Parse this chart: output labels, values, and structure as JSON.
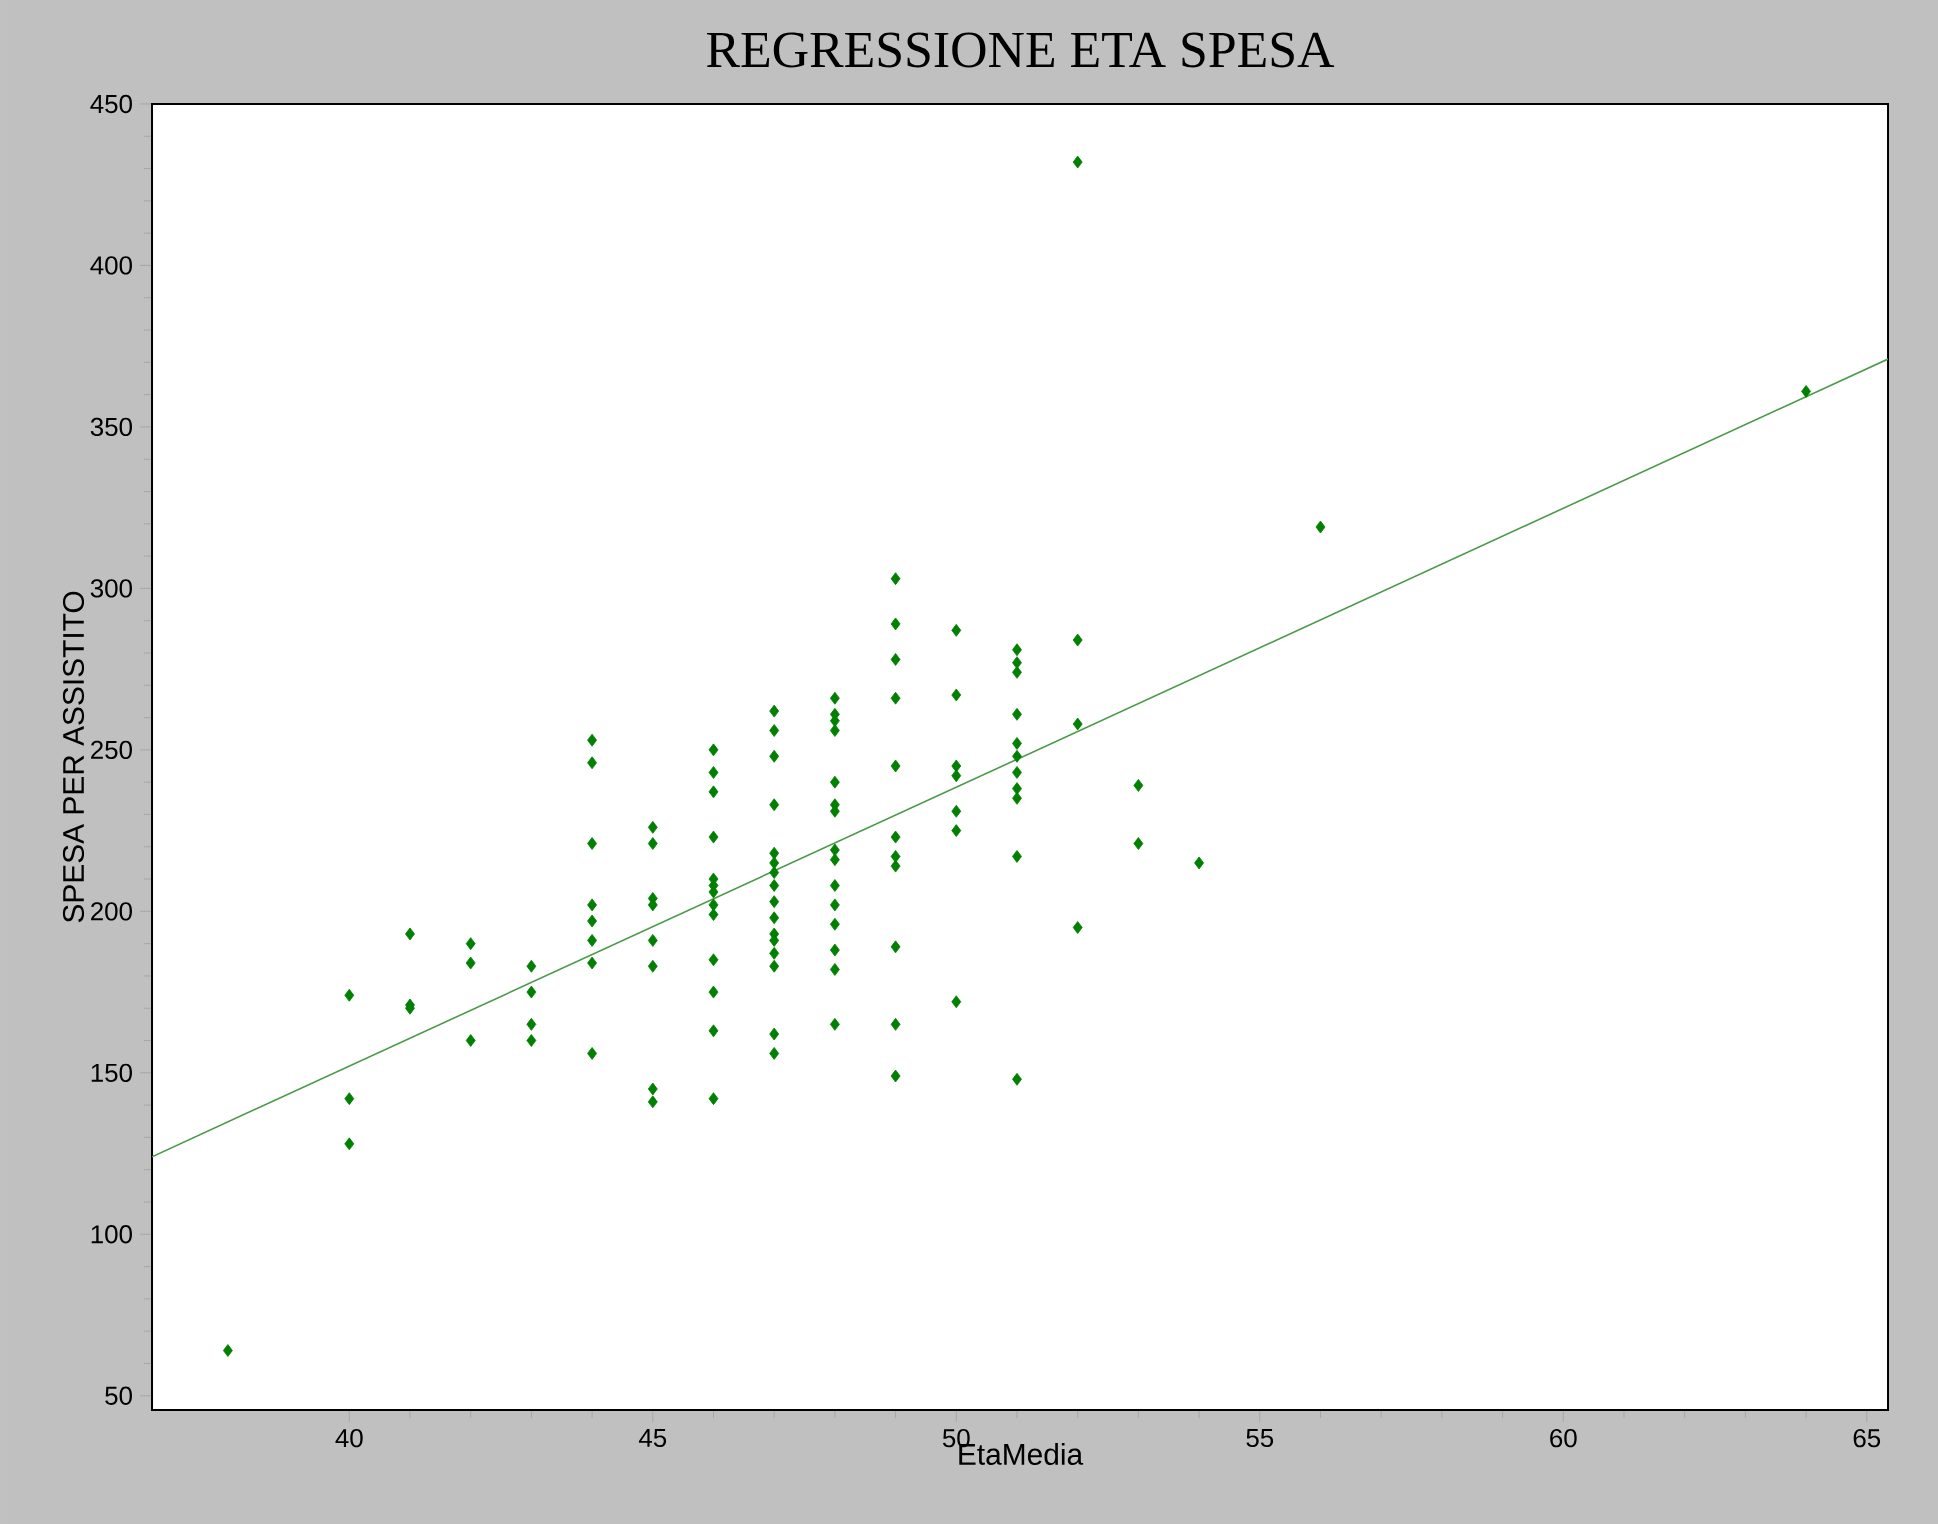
{
  "chart_data": {
    "type": "scatter",
    "title": "REGRESSIONE ETA SPESA",
    "xlabel": "EtaMedia",
    "ylabel": "SPESA PER ASSISTITO",
    "xlim": [
      36.75,
      65.35
    ],
    "ylim": [
      45.6,
      450
    ],
    "xticks": [
      40,
      45,
      50,
      55,
      60,
      65
    ],
    "yticks": [
      50,
      100,
      150,
      200,
      250,
      300,
      350,
      400,
      450
    ],
    "grid": false,
    "marker": "diamond",
    "series": [
      {
        "color": "#008000",
        "x": [
          38,
          40,
          40,
          40,
          41,
          41,
          41,
          42,
          42,
          42,
          43,
          43,
          43,
          43,
          44,
          44,
          44,
          44,
          44,
          44,
          44,
          44,
          45,
          45,
          45,
          45,
          45,
          45,
          45,
          45,
          46,
          46,
          46,
          46,
          46,
          46,
          46,
          46,
          46,
          46,
          46,
          46,
          46,
          47,
          47,
          47,
          47,
          47,
          47,
          47,
          47,
          47,
          47,
          47,
          47,
          47,
          47,
          47,
          47,
          48,
          48,
          48,
          48,
          48,
          48,
          48,
          48,
          48,
          48,
          48,
          48,
          48,
          48,
          48,
          49,
          49,
          49,
          49,
          49,
          49,
          49,
          49,
          49,
          49,
          49,
          50,
          50,
          50,
          50,
          50,
          50,
          50,
          51,
          51,
          51,
          51,
          51,
          51,
          51,
          51,
          51,
          51,
          51,
          52,
          52,
          52,
          52,
          53,
          53,
          54,
          56,
          64
        ],
        "values": [
          64,
          174,
          142,
          128,
          193,
          171,
          170,
          190,
          184,
          160,
          183,
          175,
          165,
          160,
          253,
          246,
          221,
          202,
          197,
          191,
          184,
          156,
          226,
          221,
          204,
          202,
          191,
          183,
          145,
          141,
          250,
          243,
          237,
          223,
          210,
          208,
          206,
          202,
          199,
          185,
          175,
          163,
          142,
          262,
          256,
          248,
          233,
          218,
          215,
          212,
          208,
          203,
          198,
          193,
          191,
          187,
          183,
          162,
          156,
          266,
          261,
          259,
          256,
          240,
          233,
          231,
          219,
          216,
          208,
          202,
          196,
          188,
          182,
          165,
          303,
          289,
          278,
          266,
          245,
          223,
          217,
          214,
          189,
          165,
          149,
          287,
          267,
          245,
          242,
          231,
          225,
          172,
          281,
          277,
          274,
          261,
          252,
          248,
          243,
          238,
          235,
          217,
          148,
          432,
          284,
          258,
          195,
          239,
          221,
          215,
          319,
          361
        ]
      },
      {
        "type": "line",
        "color": "#4a9a4a",
        "marker": "none",
        "line_style": "solid",
        "x": [
          36.75,
          65.35
        ],
        "values": [
          124,
          371
        ]
      }
    ]
  }
}
